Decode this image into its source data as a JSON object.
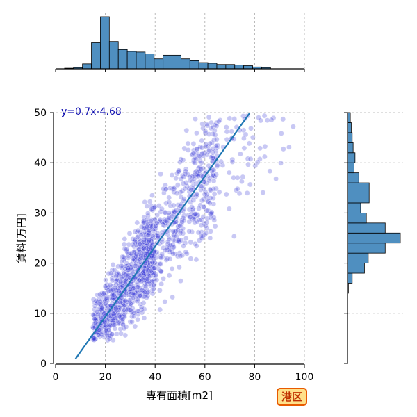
{
  "chart_data": {
    "type": "scatter",
    "main": {
      "xlabel": "専有面積[m2]",
      "ylabel": "賃料[万円]",
      "xlim": [
        0,
        100
      ],
      "ylim": [
        0,
        50
      ],
      "xticks": [
        "0",
        "20",
        "40",
        "60",
        "80",
        "100"
      ],
      "yticks": [
        "0",
        "10",
        "20",
        "30",
        "40",
        "50"
      ],
      "grid": true,
      "point_color": "#3b3bd6",
      "fit_line": {
        "slope": 0.7,
        "intercept": -4.68,
        "label": "y=0.7x-4.68",
        "x_range": [
          8,
          78
        ],
        "color": "#1f77b4"
      }
    },
    "top_histogram": {
      "variable": "専有面積[m2]",
      "bin_width": 3.6,
      "bins_start": 0,
      "counts": [
        0,
        1,
        2,
        8,
        42,
        84,
        44,
        31,
        28,
        27,
        24,
        16,
        22,
        22,
        16,
        13,
        10,
        9,
        7,
        7,
        6,
        5,
        3,
        2
      ],
      "color": "#4f8fc0"
    },
    "right_histogram": {
      "variable": "賃料[万円]",
      "bin_width": 2,
      "bins_start": 0,
      "counts": [
        0,
        0,
        0,
        0,
        0,
        0,
        0,
        1,
        5,
        18,
        22,
        40,
        56,
        40,
        20,
        14,
        23,
        23,
        12,
        7,
        8,
        6,
        5,
        4,
        3
      ],
      "color": "#4f8fc0"
    },
    "legend_badge": "港区"
  }
}
